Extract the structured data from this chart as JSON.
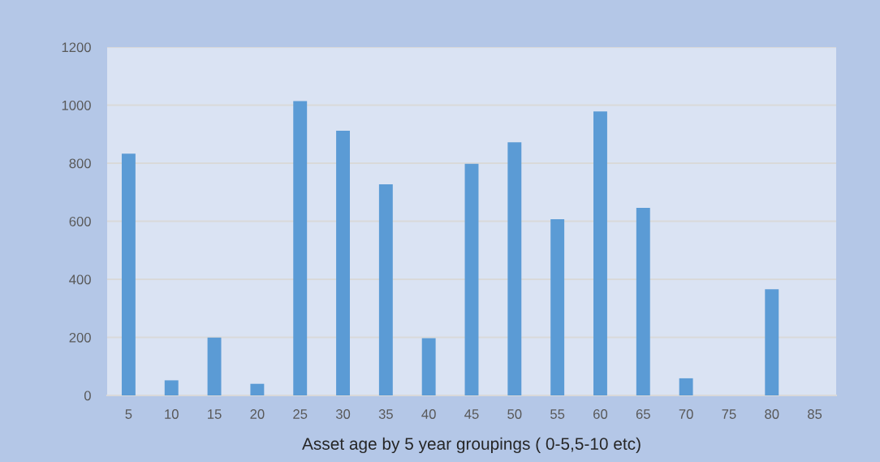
{
  "chart_data": {
    "type": "bar",
    "xlabel": "Asset age by 5 year groupings ( 0-5,5-10 etc)",
    "categories": [
      "5",
      "10",
      "15",
      "20",
      "25",
      "30",
      "35",
      "40",
      "45",
      "50",
      "55",
      "60",
      "65",
      "70",
      "75",
      "80",
      "85"
    ],
    "values": [
      833,
      52,
      199,
      40,
      1014,
      912,
      727,
      197,
      798,
      872,
      607,
      978,
      646,
      59,
      0,
      366,
      0
    ],
    "color": "#5b9bd5",
    "ylim": [
      0,
      1200
    ],
    "yticks": [
      0,
      200,
      400,
      600,
      800,
      1000,
      1200
    ],
    "grid": "y"
  }
}
